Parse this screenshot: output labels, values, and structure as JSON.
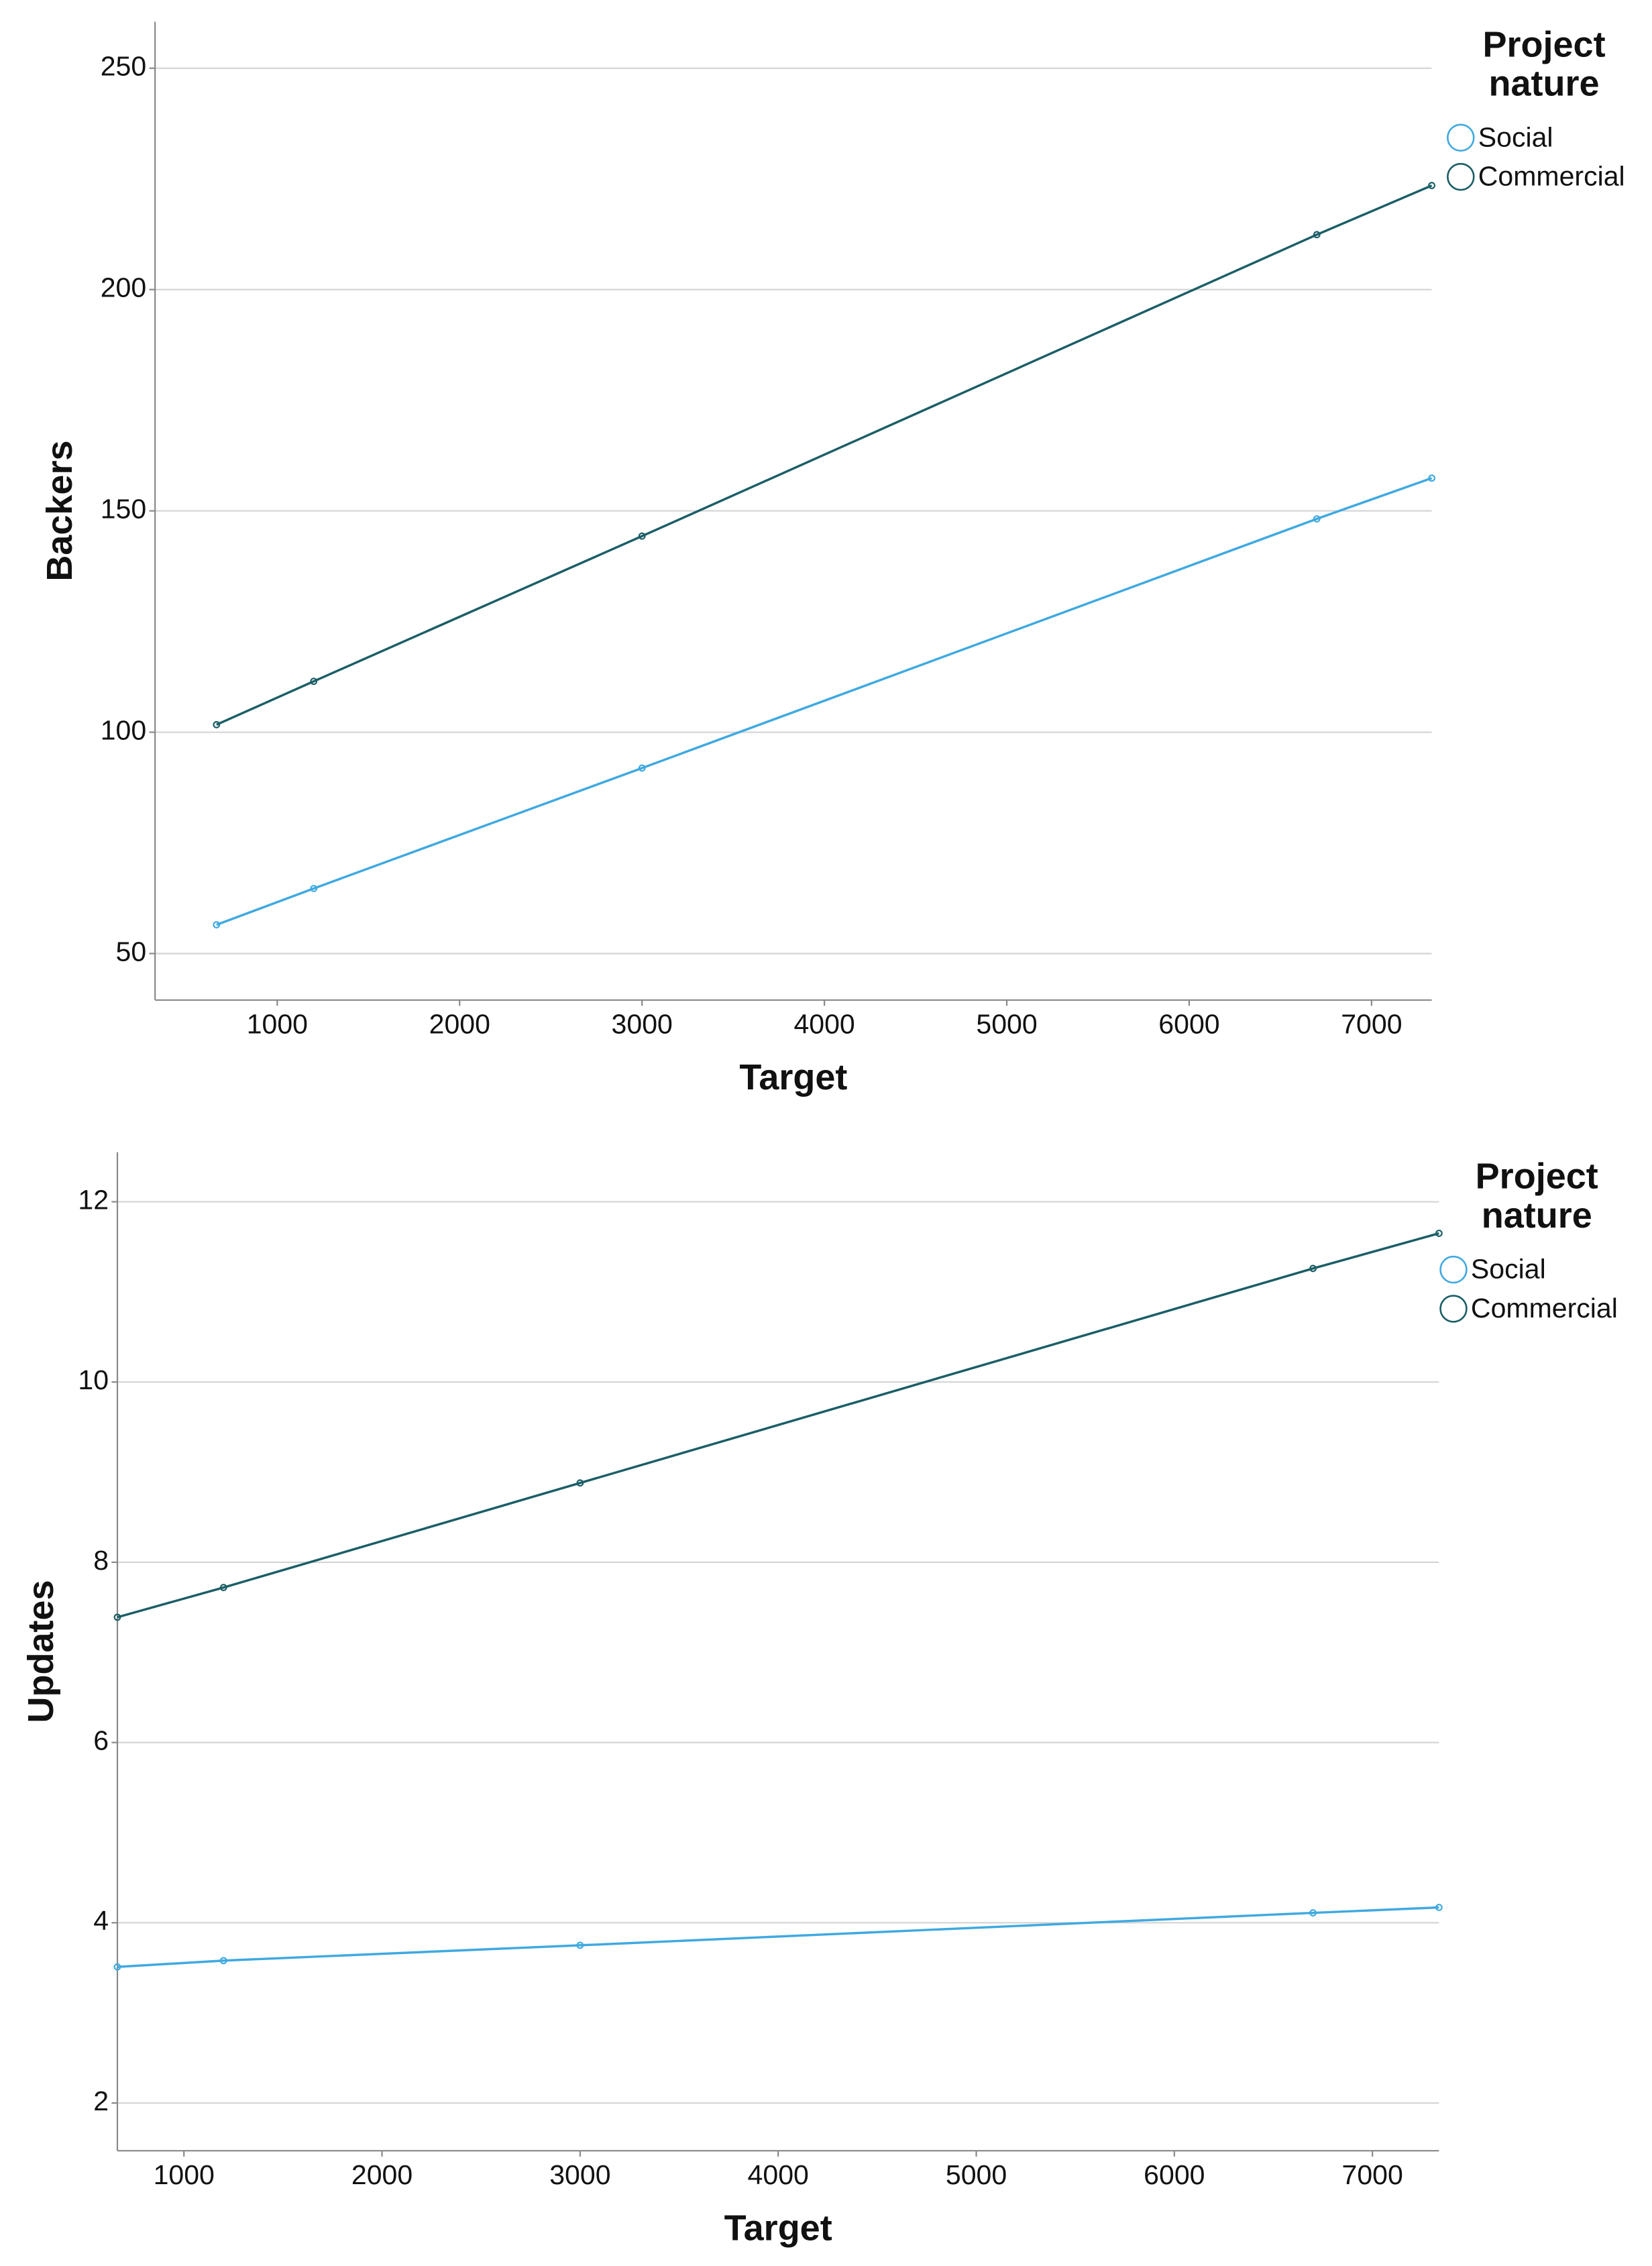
{
  "chart_data": [
    {
      "type": "line",
      "x_label": "Target",
      "y_label": "Backers",
      "legend_title": "Project nature",
      "legend": "right",
      "grid": true,
      "x": [
        667,
        1200,
        3000,
        6700,
        7330
      ],
      "series": [
        {
          "name": "Social",
          "color": "#3fa9e0",
          "values": [
            56.5,
            64.7,
            91.9,
            148.2,
            157.4
          ]
        },
        {
          "name": "Commercial",
          "color": "#1b5e66",
          "values": [
            101.7,
            111.5,
            144.3,
            212.4,
            223.5
          ]
        }
      ],
      "xlim": [
        330,
        7330
      ],
      "xticks": [
        1000,
        2000,
        3000,
        4000,
        5000,
        6000,
        7000
      ],
      "ylim": [
        39.5,
        260.5
      ],
      "yticks": [
        50,
        100,
        150,
        200,
        250
      ]
    },
    {
      "type": "line",
      "x_label": "Target",
      "y_label": "Updates",
      "legend_title": "Project nature",
      "legend": "right",
      "grid": true,
      "x": [
        664,
        1200,
        3000,
        6700,
        7336
      ],
      "series": [
        {
          "name": "Social",
          "color": "#3fa9e0",
          "values": [
            3.51,
            3.58,
            3.75,
            4.11,
            4.17
          ]
        },
        {
          "name": "Commercial",
          "color": "#1b5e66",
          "values": [
            7.39,
            7.72,
            8.88,
            11.26,
            11.65
          ]
        }
      ],
      "xlim": [
        664,
        7336
      ],
      "xticks": [
        1000,
        2000,
        3000,
        4000,
        5000,
        6000,
        7000
      ],
      "ylim": [
        1.47,
        12.55
      ],
      "yticks": [
        2,
        4,
        6,
        8,
        10,
        12
      ]
    }
  ]
}
